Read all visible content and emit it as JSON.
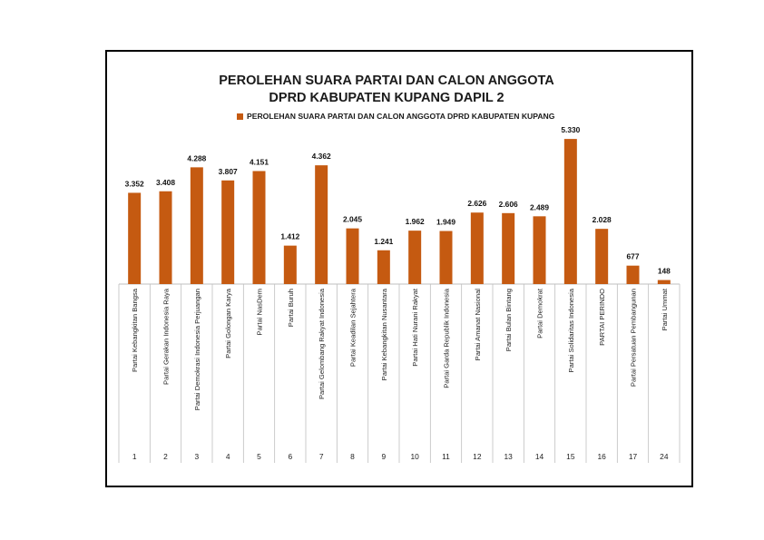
{
  "colors": {
    "bar": "#C55A11",
    "frame": "#000000",
    "grid": "#BFBFBF"
  },
  "chart_data": {
    "type": "bar",
    "title_lines": [
      "PEROLEHAN SUARA PARTAI DAN CALON ANGGOTA",
      "DPRD KABUPATEN KUPANG DAPIL 2"
    ],
    "legend": [
      "PEROLEHAN SUARA PARTAI DAN CALON ANGGOTA DPRD KABUPATEN KUPANG"
    ],
    "legend_position": "top",
    "ylim": [
      0,
      5500
    ],
    "grid": false,
    "numbers": [
      "1",
      "2",
      "3",
      "4",
      "5",
      "6",
      "7",
      "8",
      "9",
      "10",
      "11",
      "12",
      "13",
      "14",
      "15",
      "16",
      "17",
      "24"
    ],
    "categories": [
      "Partai Kebangkitan Bangsa",
      "Partai Gerakan Indonesia Raya",
      "Partai Demokrasi Indonesia Perjuangan",
      "Partai Golongan Karya",
      "Partai NasDem",
      "Partai Buruh",
      "Partai Gelombang Rakyat Indonesia",
      "Partai Keadilan Sejahtera",
      "Partai Kebangkitan Nusantara",
      "Partai Hati Nurani Rakyat",
      "Partai Garda Republik Indonesia",
      "Partai Amanat Nasional",
      "Partai Bulan Bintang",
      "Partai Demokrat",
      "Partai Solidaritas Indonesia",
      "PARTAI PERINDO",
      "Partai Persatuan Pembangunan",
      "Partai Ummat"
    ],
    "values": [
      3352,
      3408,
      4288,
      3807,
      4151,
      1412,
      4362,
      2045,
      1241,
      1962,
      1949,
      2626,
      2606,
      2489,
      5330,
      2028,
      677,
      148
    ],
    "value_labels": [
      "3.352",
      "3.408",
      "4.288",
      "3.807",
      "4.151",
      "1.412",
      "4.362",
      "2.045",
      "1.241",
      "1.962",
      "1.949",
      "2.626",
      "2.606",
      "2.489",
      "5.330",
      "2.028",
      "677",
      "148"
    ]
  }
}
